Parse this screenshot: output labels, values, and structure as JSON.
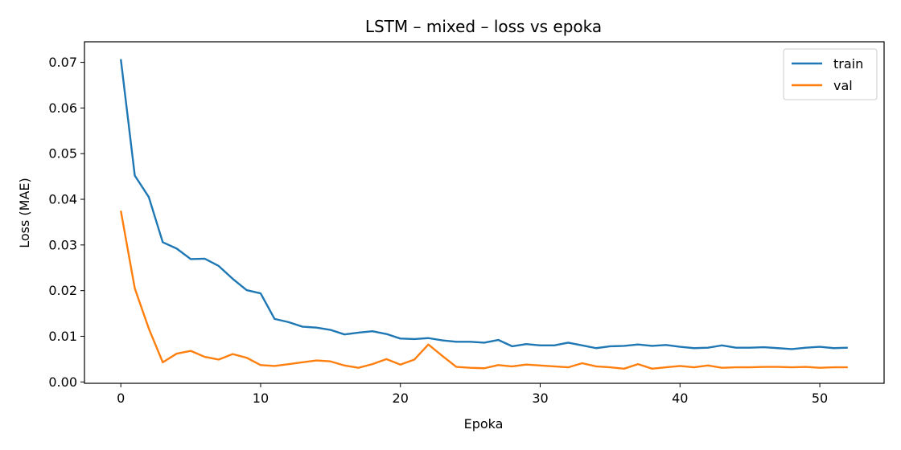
{
  "chart_data": {
    "type": "line",
    "title": "LSTM – mixed – loss vs epoka",
    "xlabel": "Epoka",
    "ylabel": "Loss (MAE)",
    "xlim": [
      -2.6,
      54.6
    ],
    "ylim": [
      -0.0003,
      0.0745
    ],
    "xticks": [
      0,
      10,
      20,
      30,
      40,
      50
    ],
    "xtick_labels": [
      "0",
      "10",
      "20",
      "30",
      "40",
      "50"
    ],
    "yticks": [
      0,
      0.01,
      0.02,
      0.03,
      0.04,
      0.05,
      0.06,
      0.07
    ],
    "ytick_labels": [
      "0.00",
      "0.01",
      "0.02",
      "0.03",
      "0.04",
      "0.05",
      "0.06",
      "0.07"
    ],
    "grid": false,
    "legend_position": "top-right",
    "x": [
      0,
      1,
      2,
      3,
      4,
      5,
      6,
      7,
      8,
      9,
      10,
      11,
      12,
      13,
      14,
      15,
      16,
      17,
      18,
      19,
      20,
      21,
      22,
      23,
      24,
      25,
      26,
      27,
      28,
      29,
      30,
      31,
      32,
      33,
      34,
      35,
      36,
      37,
      38,
      39,
      40,
      41,
      42,
      43,
      44,
      45,
      46,
      47,
      48,
      49,
      50,
      51,
      52
    ],
    "series": [
      {
        "name": "train",
        "color": "#1f77b4",
        "values": [
          0.0707,
          0.0452,
          0.0405,
          0.0306,
          0.0292,
          0.0269,
          0.027,
          0.0254,
          0.0226,
          0.0201,
          0.0194,
          0.0138,
          0.0131,
          0.0121,
          0.0119,
          0.0114,
          0.0104,
          0.0108,
          0.0111,
          0.0105,
          0.0095,
          0.0094,
          0.0096,
          0.0091,
          0.0088,
          0.0088,
          0.0086,
          0.0092,
          0.0078,
          0.0083,
          0.008,
          0.008,
          0.0086,
          0.008,
          0.0074,
          0.0078,
          0.0079,
          0.0082,
          0.0079,
          0.0081,
          0.0077,
          0.0074,
          0.0075,
          0.008,
          0.0075,
          0.0075,
          0.0076,
          0.0074,
          0.0072,
          0.0075,
          0.0077,
          0.0074,
          0.0075
        ]
      },
      {
        "name": "val",
        "color": "#ff7f0e",
        "values": [
          0.0375,
          0.0205,
          0.0117,
          0.0043,
          0.0062,
          0.0068,
          0.0055,
          0.0049,
          0.0061,
          0.0053,
          0.0037,
          0.0035,
          0.0039,
          0.0043,
          0.0047,
          0.0045,
          0.0036,
          0.0031,
          0.0039,
          0.005,
          0.0038,
          0.0049,
          0.0082,
          0.0057,
          0.0033,
          0.0031,
          0.003,
          0.0037,
          0.0034,
          0.0038,
          0.0036,
          0.0034,
          0.0032,
          0.0041,
          0.0034,
          0.0032,
          0.0029,
          0.0039,
          0.0029,
          0.0032,
          0.0035,
          0.0032,
          0.0036,
          0.0031,
          0.0032,
          0.0032,
          0.0033,
          0.0033,
          0.0032,
          0.0033,
          0.0031,
          0.0032,
          0.0032
        ]
      }
    ]
  }
}
